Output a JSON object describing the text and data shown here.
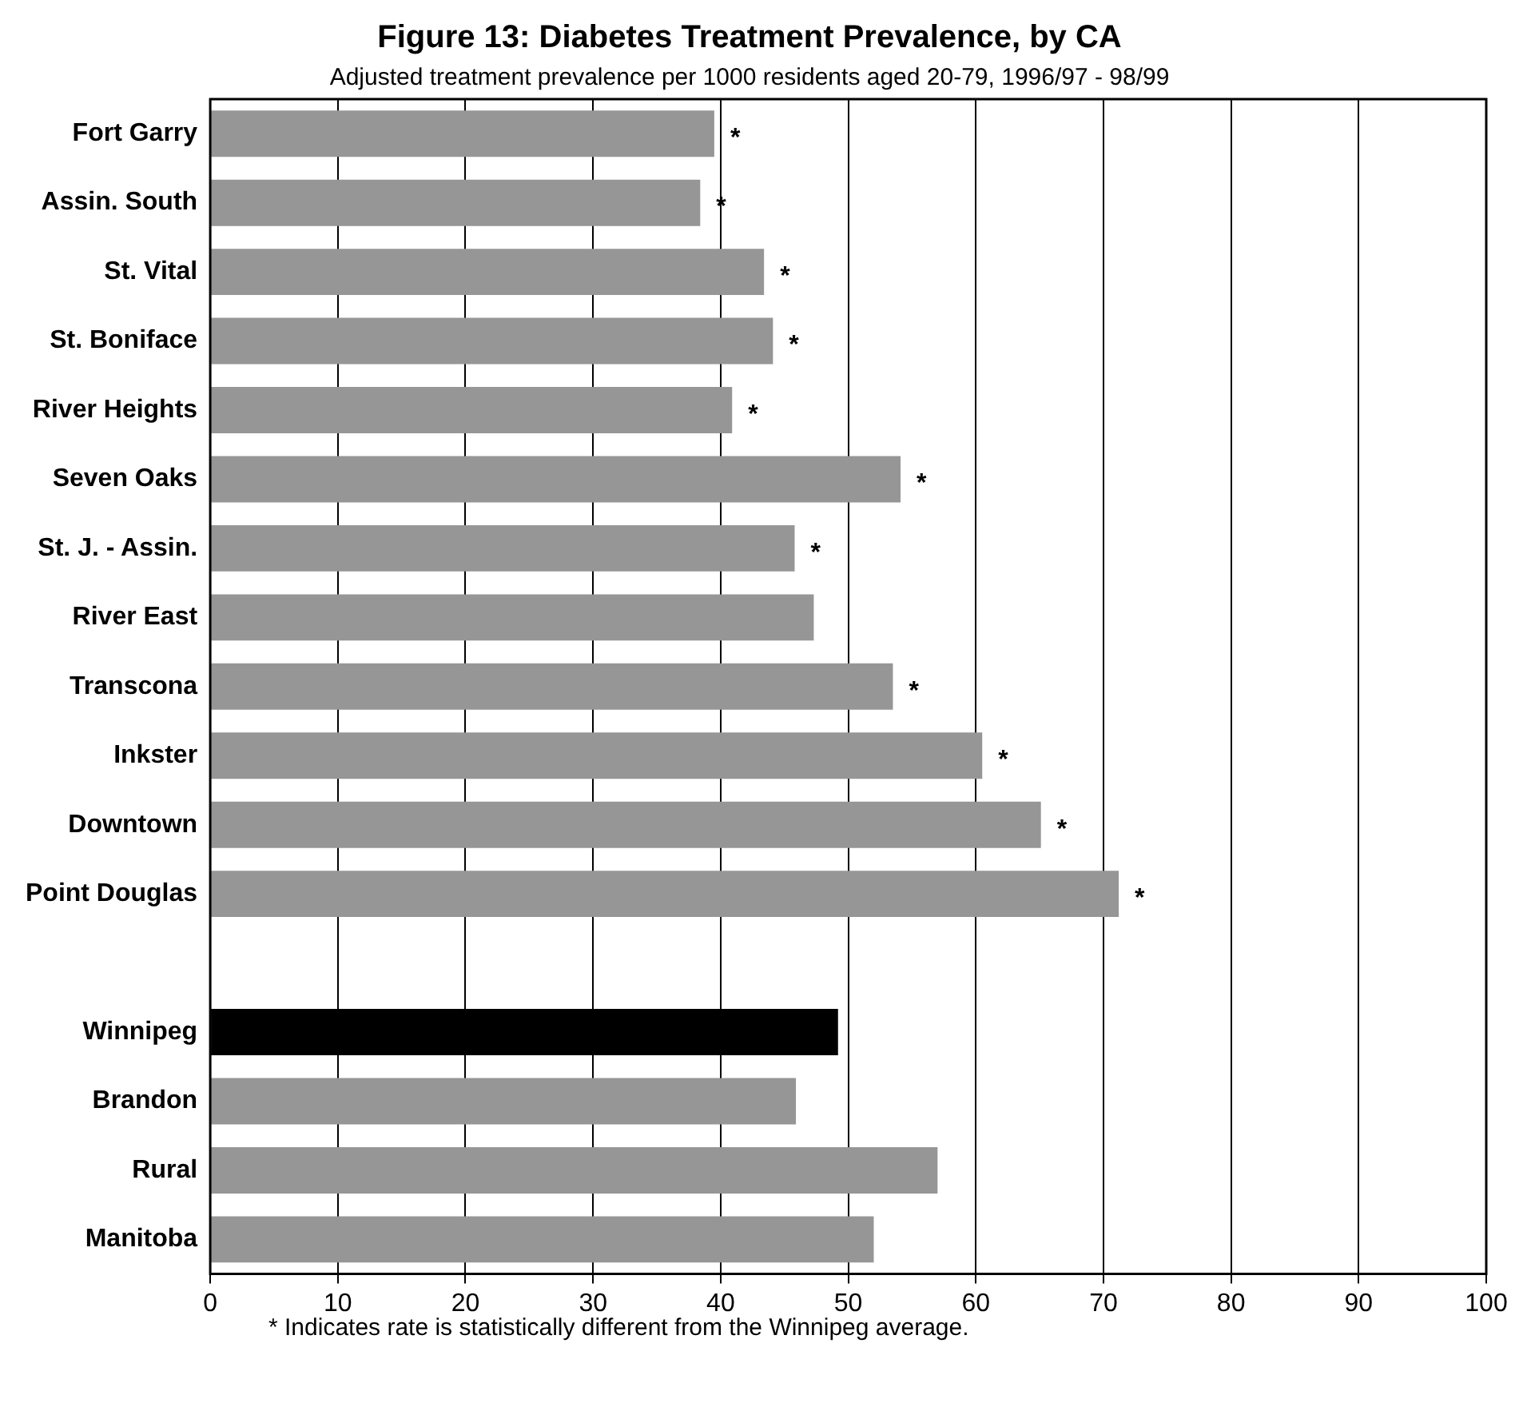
{
  "chart_data": {
    "type": "bar",
    "orientation": "horizontal",
    "title": "Figure 13: Diabetes Treatment Prevalence, by CA",
    "subtitle": "Adjusted treatment prevalence per 1000 residents aged 20-79, 1996/97 - 98/99",
    "categories": [
      "Fort Garry",
      "Assin. South",
      "St. Vital",
      "St. Boniface",
      "River Heights",
      "Seven Oaks",
      "St. J. - Assin.",
      "River East",
      "Transcona",
      "Inkster",
      "Downtown",
      "Point Douglas",
      null,
      "Winnipeg",
      "Brandon",
      "Rural",
      "Manitoba"
    ],
    "values": [
      39.5,
      38.4,
      43.4,
      44.1,
      40.9,
      54.1,
      45.8,
      47.3,
      53.5,
      60.5,
      65.1,
      71.2,
      null,
      49.2,
      45.9,
      57.0,
      52.0
    ],
    "colors": [
      "#969696",
      "#969696",
      "#969696",
      "#969696",
      "#969696",
      "#969696",
      "#969696",
      "#969696",
      "#969696",
      "#969696",
      "#969696",
      "#969696",
      "#969696",
      "#000000",
      "#969696",
      "#969696",
      "#969696"
    ],
    "value_labels": [
      "*",
      "*",
      "*",
      "*",
      "*",
      "*",
      "*",
      null,
      "*",
      "*",
      "*",
      "*",
      null,
      null,
      null,
      null,
      null
    ],
    "xlim": [
      0,
      100
    ],
    "xticks": [
      0,
      10,
      20,
      30,
      40,
      50,
      60,
      70,
      80,
      90,
      100
    ],
    "grid": "x",
    "legend": false,
    "annotations": [
      "* Indicates rate is statistically different from the Winnipeg average."
    ]
  }
}
